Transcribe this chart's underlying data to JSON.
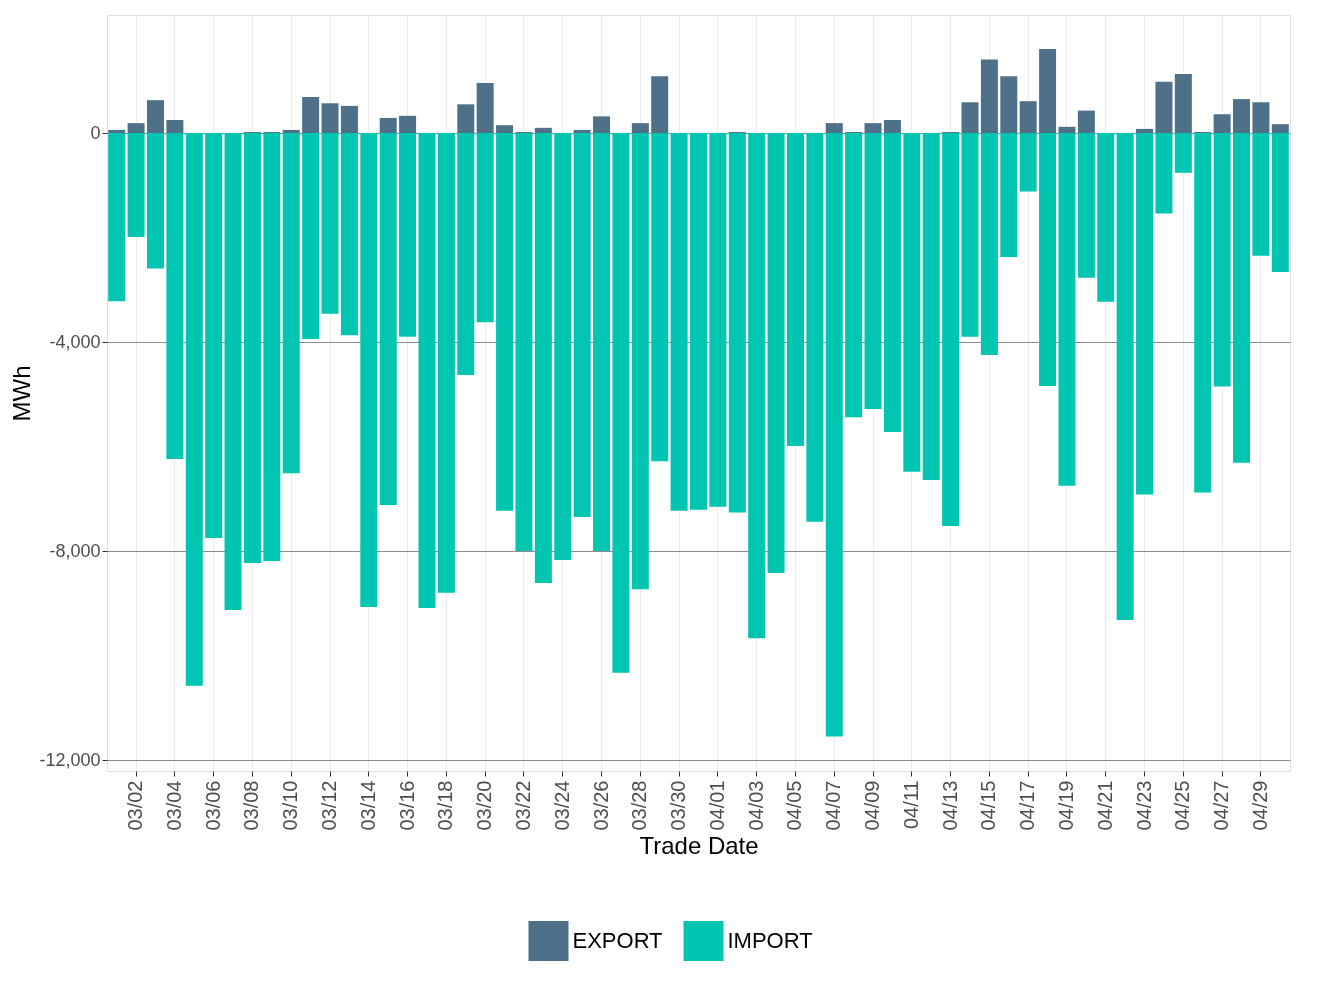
{
  "chart_data": {
    "type": "bar",
    "xlabel": "Trade Date",
    "ylabel": "MWh",
    "categories": [
      null,
      "03/02",
      null,
      "03/04",
      null,
      "03/06",
      null,
      "03/08",
      null,
      "03/10",
      null,
      "03/12",
      null,
      "03/14",
      null,
      "03/16",
      null,
      "03/18",
      null,
      "03/20",
      null,
      "03/22",
      null,
      "03/24",
      null,
      "03/26",
      null,
      "03/28",
      null,
      "03/30",
      null,
      "04/01",
      null,
      "04/03",
      null,
      "04/05",
      null,
      "04/07",
      null,
      "04/09",
      null,
      "04/11",
      null,
      "04/13",
      null,
      "04/15",
      null,
      "04/17",
      null,
      "04/19",
      null,
      "04/21",
      null,
      "04/23",
      null,
      "04/25",
      null,
      "04/27",
      null,
      "04/29",
      null
    ],
    "series": [
      {
        "name": "EXPORT",
        "color": "#4e7089",
        "values": [
          60,
          190,
          630,
          250,
          0,
          0,
          0,
          20,
          20,
          60,
          690,
          570,
          520,
          0,
          290,
          330,
          0,
          0,
          550,
          960,
          150,
          20,
          100,
          0,
          60,
          320,
          0,
          190,
          1090,
          0,
          0,
          0,
          20,
          0,
          0,
          0,
          0,
          190,
          20,
          190,
          250,
          0,
          0,
          20,
          590,
          1410,
          1090,
          610,
          1610,
          120,
          430,
          0,
          0,
          80,
          980,
          1130,
          20,
          360,
          650,
          590,
          170
        ]
      },
      {
        "name": "IMPORT",
        "color": "#00c5b0",
        "values": [
          -3220,
          -1990,
          -2590,
          -6240,
          -10580,
          -7750,
          -9130,
          -8230,
          -8190,
          -6510,
          -3940,
          -3460,
          -3870,
          -9070,
          -7120,
          -3900,
          -9090,
          -8800,
          -4630,
          -3620,
          -7230,
          -8000,
          -8610,
          -8170,
          -7350,
          -8000,
          -10330,
          -8730,
          -6280,
          -7230,
          -7210,
          -7150,
          -7260,
          -9670,
          -8420,
          -5990,
          -7440,
          -11550,
          -5440,
          -5280,
          -5720,
          -6480,
          -6640,
          -7520,
          -3900,
          -4250,
          -2370,
          -1120,
          -4840,
          -6750,
          -2770,
          -3230,
          -9320,
          -6920,
          -1540,
          -760,
          -6880,
          -4850,
          -6310,
          -2350,
          -2660
        ]
      }
    ],
    "stacked": true,
    "ylim": [
      -12210,
      2260
    ],
    "yticks": [
      {
        "value": -12000,
        "label": "-12,000"
      },
      {
        "value": -8000,
        "label": "-8,000"
      },
      {
        "value": -4000,
        "label": "-4,000"
      },
      0
    ],
    "grid": true,
    "legend": "bottom"
  }
}
